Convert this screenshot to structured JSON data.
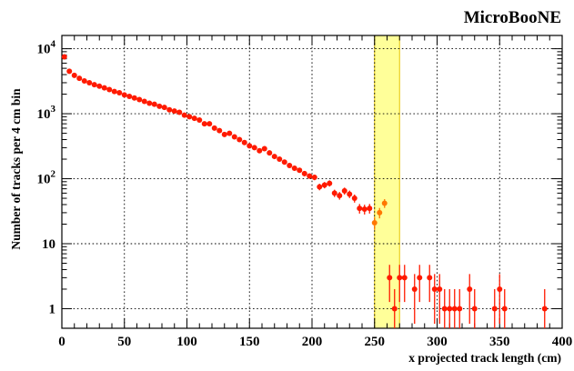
{
  "chart_data": {
    "type": "scatter",
    "title": "MicroBooNE",
    "xlabel": "x projected track length (cm)",
    "ylabel": "Number of tracks per 4 cm bin",
    "xlim": [
      0,
      400
    ],
    "ylim": [
      0.5,
      16000
    ],
    "yscale": "log",
    "grid": true,
    "x_ticks": [
      0,
      50,
      100,
      150,
      200,
      250,
      300,
      350,
      400
    ],
    "x_tick_labels": [
      "0",
      "50",
      "100",
      "150",
      "200",
      "250",
      "300",
      "350",
      "400"
    ],
    "y_ticks": [
      1,
      10,
      100,
      1000,
      10000
    ],
    "y_tick_labels": [
      {
        "base": "1",
        "exp": ""
      },
      {
        "base": "10",
        "exp": ""
      },
      {
        "base": "10",
        "exp": "2"
      },
      {
        "base": "10",
        "exp": "3"
      },
      {
        "base": "10",
        "exp": "4"
      }
    ],
    "highlight_band": {
      "x_range": [
        250,
        270
      ],
      "color": "#ffff99",
      "edge_color": "#e8c600"
    },
    "marker_color": "#ff1a00",
    "highlight_marker_color": "#ff7700",
    "series": [
      {
        "points": [
          {
            "x": 2,
            "y": 7500
          },
          {
            "x": 6,
            "y": 4500
          },
          {
            "x": 10,
            "y": 3900
          },
          {
            "x": 14,
            "y": 3500
          },
          {
            "x": 18,
            "y": 3200
          },
          {
            "x": 22,
            "y": 3000
          },
          {
            "x": 26,
            "y": 2800
          },
          {
            "x": 30,
            "y": 2650
          },
          {
            "x": 34,
            "y": 2500
          },
          {
            "x": 38,
            "y": 2350
          },
          {
            "x": 42,
            "y": 2200
          },
          {
            "x": 46,
            "y": 2100
          },
          {
            "x": 50,
            "y": 1950
          },
          {
            "x": 54,
            "y": 1850
          },
          {
            "x": 58,
            "y": 1750
          },
          {
            "x": 62,
            "y": 1650
          },
          {
            "x": 66,
            "y": 1550
          },
          {
            "x": 70,
            "y": 1450
          },
          {
            "x": 74,
            "y": 1400
          },
          {
            "x": 78,
            "y": 1300
          },
          {
            "x": 82,
            "y": 1250
          },
          {
            "x": 86,
            "y": 1150
          },
          {
            "x": 90,
            "y": 1100
          },
          {
            "x": 94,
            "y": 1050
          },
          {
            "x": 98,
            "y": 950
          },
          {
            "x": 102,
            "y": 900
          },
          {
            "x": 106,
            "y": 850
          },
          {
            "x": 110,
            "y": 800
          },
          {
            "x": 114,
            "y": 700
          },
          {
            "x": 118,
            "y": 700
          },
          {
            "x": 122,
            "y": 600
          },
          {
            "x": 126,
            "y": 550
          },
          {
            "x": 130,
            "y": 480
          },
          {
            "x": 134,
            "y": 500
          },
          {
            "x": 138,
            "y": 440
          },
          {
            "x": 142,
            "y": 400
          },
          {
            "x": 146,
            "y": 360
          },
          {
            "x": 150,
            "y": 320
          },
          {
            "x": 154,
            "y": 300
          },
          {
            "x": 158,
            "y": 270
          },
          {
            "x": 162,
            "y": 290
          },
          {
            "x": 166,
            "y": 250
          },
          {
            "x": 170,
            "y": 220
          },
          {
            "x": 174,
            "y": 200
          },
          {
            "x": 178,
            "y": 180
          },
          {
            "x": 182,
            "y": 160
          },
          {
            "x": 186,
            "y": 145
          },
          {
            "x": 190,
            "y": 135
          },
          {
            "x": 194,
            "y": 120
          },
          {
            "x": 198,
            "y": 110
          },
          {
            "x": 202,
            "y": 105
          },
          {
            "x": 206,
            "y": 75
          },
          {
            "x": 210,
            "y": 80
          },
          {
            "x": 214,
            "y": 85
          },
          {
            "x": 218,
            "y": 60
          },
          {
            "x": 222,
            "y": 55
          },
          {
            "x": 226,
            "y": 65
          },
          {
            "x": 230,
            "y": 58
          },
          {
            "x": 234,
            "y": 50
          },
          {
            "x": 238,
            "y": 35
          },
          {
            "x": 242,
            "y": 34
          },
          {
            "x": 246,
            "y": 35
          },
          {
            "x": 250,
            "y": 21
          },
          {
            "x": 254,
            "y": 30
          },
          {
            "x": 258,
            "y": 42
          },
          {
            "x": 262,
            "y": 3
          },
          {
            "x": 266,
            "y": 1
          },
          {
            "x": 270,
            "y": 3
          },
          {
            "x": 274,
            "y": 3
          },
          {
            "x": 282,
            "y": 2
          },
          {
            "x": 286,
            "y": 3
          },
          {
            "x": 294,
            "y": 3
          },
          {
            "x": 298,
            "y": 2
          },
          {
            "x": 302,
            "y": 2
          },
          {
            "x": 306,
            "y": 1
          },
          {
            "x": 310,
            "y": 1
          },
          {
            "x": 314,
            "y": 1
          },
          {
            "x": 318,
            "y": 1
          },
          {
            "x": 326,
            "y": 2
          },
          {
            "x": 330,
            "y": 1
          },
          {
            "x": 346,
            "y": 1
          },
          {
            "x": 350,
            "y": 2
          },
          {
            "x": 354,
            "y": 1
          },
          {
            "x": 386,
            "y": 1
          }
        ]
      }
    ]
  }
}
